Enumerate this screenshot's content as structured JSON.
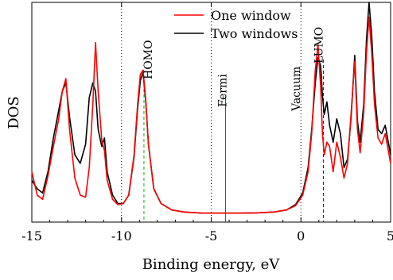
{
  "colors": {
    "one_window": "#ff0000",
    "two_windows": "#000000",
    "homo_marker": "#00bb00",
    "lumo_marker": "#0000ff",
    "fermi_marker": "#ff0000",
    "reference_lines": "#000000"
  },
  "chart_data": {
    "type": "line",
    "xlabel": "Binding energy, eV",
    "ylabel": "DOS",
    "xlim": [
      -15,
      5
    ],
    "ylim": [
      0,
      1
    ],
    "xticks": [
      -15,
      -10,
      -5,
      0,
      5
    ],
    "xtick_labels": [
      "-15",
      "-10",
      "-5",
      "0",
      "5"
    ],
    "grid": false,
    "legend_position": "top-center",
    "series": [
      {
        "name": "One window",
        "color": "#ff0000",
        "x": [
          -15,
          -14.7,
          -14.4,
          -14.1,
          -13.8,
          -13.5,
          -13.3,
          -13.1,
          -12.9,
          -12.6,
          -12.3,
          -12.0,
          -11.8,
          -11.6,
          -11.45,
          -11.3,
          -11.1,
          -10.95,
          -10.8,
          -10.5,
          -10.2,
          -9.9,
          -9.6,
          -9.3,
          -9.1,
          -8.95,
          -8.8,
          -8.65,
          -8.5,
          -8.2,
          -7.8,
          -7.2,
          -6.5,
          -5.5,
          -4.5,
          -3.5,
          -2.5,
          -1.5,
          -0.8,
          -0.3,
          0.1,
          0.4,
          0.6,
          0.8,
          0.95,
          1.1,
          1.2,
          1.3,
          1.45,
          1.6,
          1.8,
          2.0,
          2.2,
          2.4,
          2.6,
          2.8,
          3.0,
          3.15,
          3.3,
          3.5,
          3.65,
          3.8,
          3.95,
          4.1,
          4.3,
          4.5,
          4.7,
          5.0
        ],
        "y": [
          0.2,
          0.09,
          0.07,
          0.18,
          0.32,
          0.45,
          0.58,
          0.64,
          0.4,
          0.17,
          0.09,
          0.08,
          0.22,
          0.52,
          0.81,
          0.58,
          0.35,
          0.3,
          0.16,
          0.07,
          0.045,
          0.05,
          0.09,
          0.28,
          0.52,
          0.66,
          0.68,
          0.54,
          0.33,
          0.12,
          0.05,
          0.02,
          0.01,
          0.005,
          0.005,
          0.005,
          0.006,
          0.01,
          0.02,
          0.04,
          0.09,
          0.2,
          0.38,
          0.68,
          0.8,
          0.6,
          0.38,
          0.28,
          0.34,
          0.32,
          0.2,
          0.34,
          0.27,
          0.17,
          0.24,
          0.48,
          0.72,
          0.4,
          0.29,
          0.48,
          0.76,
          0.93,
          0.76,
          0.52,
          0.36,
          0.33,
          0.38,
          0.24
        ]
      },
      {
        "name": "Two windows",
        "color": "#000000",
        "x": [
          -15,
          -14.7,
          -14.4,
          -14.1,
          -13.8,
          -13.5,
          -13.3,
          -13.1,
          -12.9,
          -12.6,
          -12.3,
          -12.0,
          -11.8,
          -11.6,
          -11.45,
          -11.3,
          -11.1,
          -10.95,
          -10.8,
          -10.5,
          -10.2,
          -9.9,
          -9.6,
          -9.3,
          -9.1,
          -8.95,
          -8.8,
          -8.65,
          -8.5,
          -8.2,
          -7.8,
          -7.2,
          -6.5,
          -5.5,
          -4.5,
          -3.5,
          -2.5,
          -1.5,
          -0.8,
          -0.3,
          0.1,
          0.4,
          0.6,
          0.8,
          0.95,
          1.1,
          1.2,
          1.3,
          1.45,
          1.6,
          1.8,
          2.0,
          2.2,
          2.4,
          2.6,
          2.8,
          3.0,
          3.15,
          3.3,
          3.5,
          3.65,
          3.8,
          3.95,
          4.1,
          4.3,
          4.5,
          4.7,
          5.0
        ],
        "y": [
          0.16,
          0.12,
          0.1,
          0.2,
          0.36,
          0.49,
          0.58,
          0.62,
          0.46,
          0.28,
          0.24,
          0.33,
          0.55,
          0.62,
          0.58,
          0.4,
          0.32,
          0.36,
          0.2,
          0.09,
          0.05,
          0.05,
          0.09,
          0.27,
          0.5,
          0.63,
          0.67,
          0.53,
          0.33,
          0.12,
          0.05,
          0.02,
          0.01,
          0.005,
          0.005,
          0.005,
          0.006,
          0.01,
          0.02,
          0.045,
          0.1,
          0.22,
          0.4,
          0.62,
          0.74,
          0.7,
          0.56,
          0.47,
          0.53,
          0.42,
          0.34,
          0.45,
          0.38,
          0.22,
          0.26,
          0.46,
          0.75,
          0.44,
          0.34,
          0.52,
          0.82,
          1.0,
          0.84,
          0.58,
          0.4,
          0.38,
          0.42,
          0.28
        ]
      }
    ],
    "reference_lines": [
      {
        "x": -10,
        "style": "dotted",
        "color": "#000000"
      },
      {
        "x": -5,
        "style": "dotted",
        "color": "#000000"
      },
      {
        "x": 0,
        "style": "dotted",
        "color": "#000000"
      }
    ],
    "markers": [
      {
        "label": "HOMO",
        "x": -8.75,
        "color": "#00bb00",
        "style": "dashed"
      },
      {
        "label": "Fermi",
        "x": -4.2,
        "color": "#ff0000",
        "style": "solid"
      },
      {
        "label": "Vacuum",
        "x": 0.0,
        "color": "#000000",
        "style": "dotted"
      },
      {
        "label": "LUMO",
        "x": 1.25,
        "color": "#0000ff",
        "style": "dashed"
      }
    ]
  }
}
